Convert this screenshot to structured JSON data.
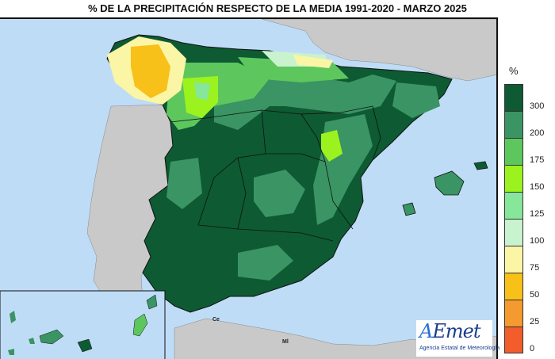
{
  "title": "% DE LA PRECIPITACIÓN RESPECTO DE LA MEDIA 1991-2020 - MARZO 2025",
  "legend": {
    "unit": "%",
    "classes": [
      {
        "label": "300",
        "color": "#0d5a33"
      },
      {
        "label": "200",
        "color": "#3a9463"
      },
      {
        "label": "175",
        "color": "#5dc75d"
      },
      {
        "label": "150",
        "color": "#9cf21f"
      },
      {
        "label": "125",
        "color": "#86e69a"
      },
      {
        "label": "100",
        "color": "#c9f2cf"
      },
      {
        "label": "75",
        "color": "#fbf5a6"
      },
      {
        "label": "50",
        "color": "#f8c119"
      },
      {
        "label": "25",
        "color": "#f49a2f"
      },
      {
        "label": "0",
        "color": "#f25d2b"
      }
    ]
  },
  "places": {
    "ceuta": "Ce",
    "melilla": "Ml"
  },
  "logo": {
    "mark_a": "A",
    "mark_rest": "Emet",
    "subtitle": "Agencia Estatal de Meteorología"
  },
  "colors": {
    "sea": "#bfdcf7",
    "land_other": "#c9c9c9",
    "border": "#111111"
  }
}
